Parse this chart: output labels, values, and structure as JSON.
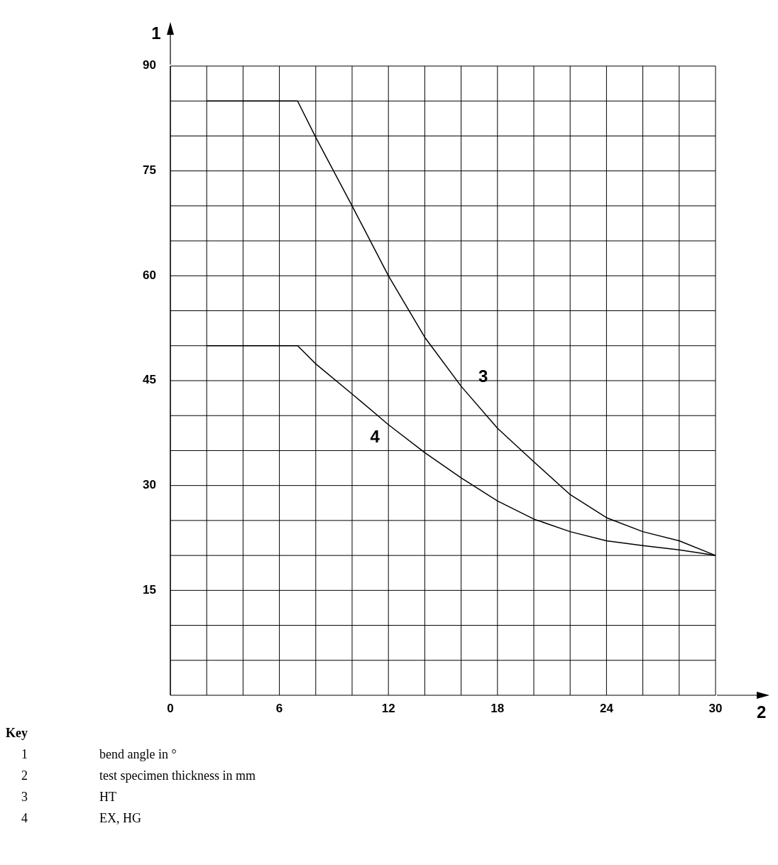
{
  "chart_data": {
    "type": "line",
    "xlabel": "2",
    "ylabel": "1",
    "xlim": [
      0,
      30
    ],
    "ylim": [
      0,
      90
    ],
    "xticks": [
      0,
      {
        "value": 2,
        "label": null
      },
      {
        "value": 4,
        "label": null
      },
      6,
      {
        "value": 8,
        "label": null
      },
      {
        "value": 10,
        "label": null
      },
      12,
      {
        "value": 14,
        "label": null
      },
      {
        "value": 16,
        "label": null
      },
      18,
      {
        "value": 20,
        "label": null
      },
      {
        "value": 22,
        "label": null
      },
      24,
      {
        "value": 26,
        "label": null
      },
      {
        "value": 28,
        "label": null
      },
      30
    ],
    "yticks": [
      {
        "value": 5,
        "label": null
      },
      {
        "value": 10,
        "label": null
      },
      15,
      {
        "value": 20,
        "label": null
      },
      {
        "value": 25,
        "label": null
      },
      30,
      {
        "value": 35,
        "label": null
      },
      {
        "value": 40,
        "label": null
      },
      45,
      {
        "value": 50,
        "label": null
      },
      {
        "value": 55,
        "label": null
      },
      60,
      {
        "value": 65,
        "label": null
      },
      {
        "value": 70,
        "label": null
      },
      75,
      {
        "value": 80,
        "label": null
      },
      {
        "value": 85,
        "label": null
      },
      90
    ],
    "grid": true,
    "marker": "none",
    "line_style": "solid",
    "x": [
      2,
      7,
      8,
      10,
      12,
      14,
      16,
      18,
      20,
      22,
      24,
      26,
      28,
      30
    ],
    "series": [
      {
        "name": "3",
        "color": "#000000",
        "values": [
          85,
          85,
          79.8,
          70,
          60,
          51.2,
          44.2,
          38.2,
          33.4,
          28.7,
          25.4,
          23.4,
          22.1,
          20
        ]
      },
      {
        "name": "4",
        "color": "#000000",
        "values": [
          50,
          50,
          47.4,
          43.1,
          38.7,
          34.7,
          31.1,
          27.8,
          25.2,
          23.4,
          22.1,
          21.4,
          20.8,
          20
        ]
      }
    ],
    "annotations": [
      "Key",
      "1 bend angle in °",
      "2 test specimen thickness in mm",
      "3 HT",
      "4 EX, HG"
    ]
  }
}
